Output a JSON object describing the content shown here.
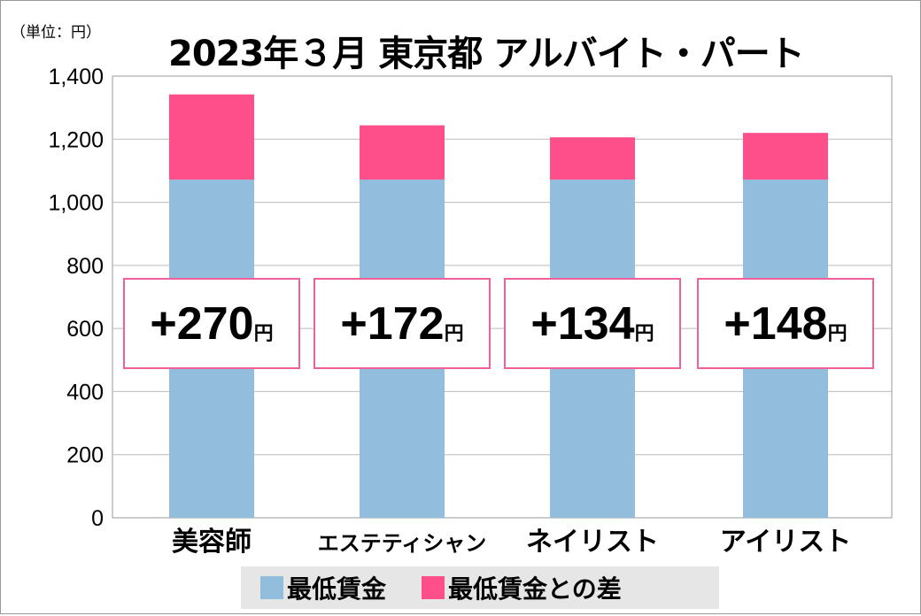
{
  "chart_data": {
    "type": "bar",
    "stacked": true,
    "title": "2023年３月 東京都 アルバイト・パート",
    "unit_label": "（単位：円）",
    "categories": [
      "美容師",
      "エステティシャン",
      "ネイリスト",
      "アイリスト"
    ],
    "series": [
      {
        "name": "最低賃金",
        "values": [
          1072,
          1072,
          1072,
          1072
        ],
        "color": "#92bddc"
      },
      {
        "name": "最低賃金との差",
        "values": [
          270,
          172,
          134,
          148
        ],
        "color": "#ff4f8b"
      }
    ],
    "data_labels": [
      {
        "sign": "+",
        "value": "270",
        "unit": "円"
      },
      {
        "sign": "+",
        "value": "172",
        "unit": "円"
      },
      {
        "sign": "+",
        "value": "134",
        "unit": "円"
      },
      {
        "sign": "+",
        "value": "148",
        "unit": "円"
      }
    ],
    "yticks": [
      "0",
      "200",
      "400",
      "600",
      "800",
      "1,000",
      "1,200",
      "1,400"
    ],
    "ylim": [
      0,
      1400
    ],
    "grid": true,
    "legend": "bottom"
  }
}
